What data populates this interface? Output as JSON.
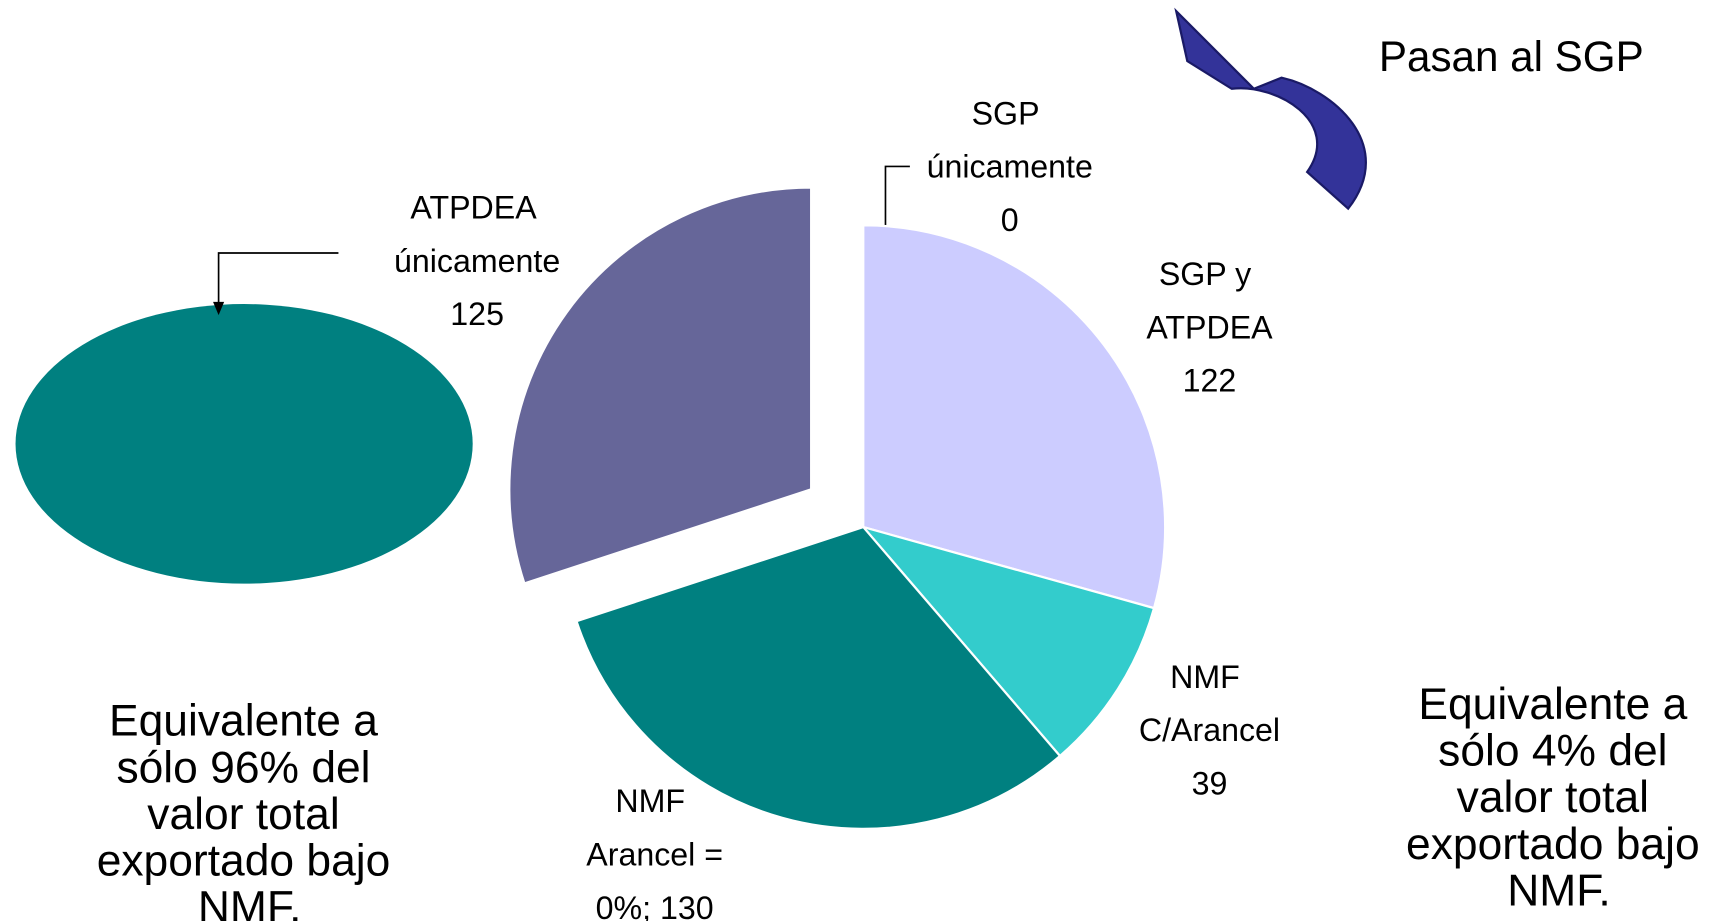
{
  "chart_data": {
    "type": "pie",
    "categories": [
      "SGP únicamente",
      "SGP y ATPDEA",
      "NMF C/Arancel",
      "NMF Arancel =",
      "ATPDEA únicamente"
    ],
    "values": [
      0,
      122,
      39,
      130,
      125
    ],
    "value_labels": [
      "0",
      "122",
      "39",
      "0%; 130",
      "125"
    ],
    "colors": [
      "#ccccff",
      "#ccccff",
      "#33cccc",
      "#008080",
      "#666699"
    ],
    "annotations": [
      "Pasan al SGP",
      "Equivalente a sólo 96% del valor total exportado bajo NMF.",
      "Equivalente a sólo 4% del valor total exportado bajo NMF."
    ]
  }
}
